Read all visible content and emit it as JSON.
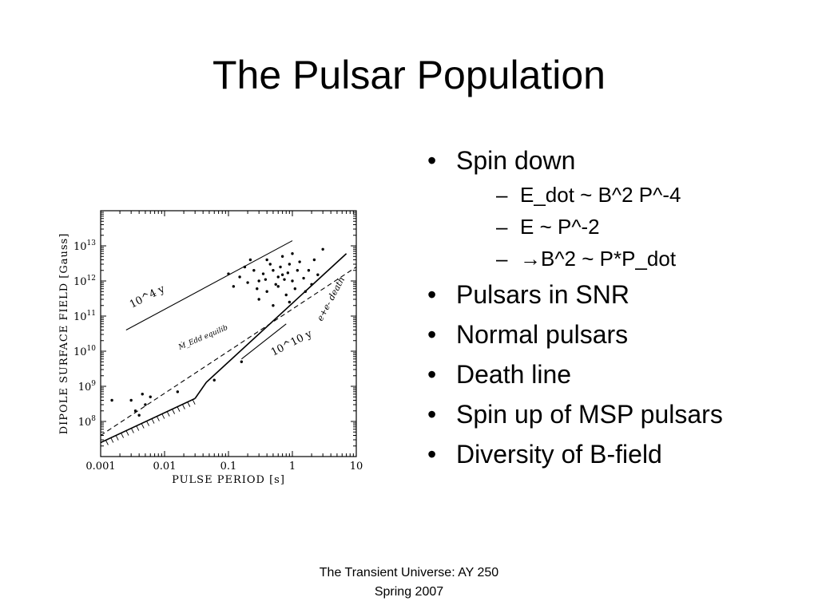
{
  "slide": {
    "title": "The Pulsar Population",
    "footer_line1": "The Transient Universe:  AY 250",
    "footer_line2": "Spring 2007"
  },
  "bullets": [
    {
      "text": "Spin down",
      "sub": [
        "E_dot ~ B^2 P^-4",
        "E ~ P^-2",
        "B^2 ~ P*P_dot"
      ]
    },
    {
      "text": "Pulsars in SNR",
      "sub": []
    },
    {
      "text": "Normal pulsars",
      "sub": []
    },
    {
      "text": "Death line",
      "sub": []
    },
    {
      "text": "Spin up of MSP pulsars",
      "sub": []
    },
    {
      "text": "Diversity of B-field",
      "sub": []
    }
  ],
  "markers": {
    "bullet": "•",
    "dash": "–",
    "arrow": "→"
  },
  "chart_data": {
    "type": "scatter",
    "xlabel": "PULSE PERIOD [s]",
    "ylabel": "DIPOLE SURFACE FIELD [Gauss]",
    "xscale": "log",
    "yscale": "log",
    "xlim": [
      0.001,
      10
    ],
    "ylim": [
      10000000.0,
      100000000000000.0
    ],
    "x_ticks": [
      "0.001",
      "0.01",
      "0.1",
      "1",
      "10"
    ],
    "y_ticks": [
      "10^8",
      "10^9",
      "10^10",
      "10^11",
      "10^12",
      "10^13"
    ],
    "annotations": [
      "10^4 y",
      "10^10 y",
      "Ṁ_Edd equilib",
      "e+e- death"
    ],
    "series": [
      {
        "values": [
          [
            0.5,
            2000000000000.0
          ],
          [
            0.7,
            1500000000000.0
          ],
          [
            0.3,
            1000000000000.0
          ],
          [
            1.0,
            1000000000000.0
          ],
          [
            0.9,
            3000000000000.0
          ],
          [
            0.4,
            500000000000.0
          ],
          [
            0.6,
            700000000000.0
          ],
          [
            1.2,
            2000000000000.0
          ],
          [
            0.25,
            2000000000000.0
          ],
          [
            0.8,
            400000000000.0
          ],
          [
            1.5,
            1200000000000.0
          ],
          [
            0.45,
            3000000000000.0
          ],
          [
            0.35,
            1600000000000.0
          ],
          [
            0.55,
            800000000000.0
          ],
          [
            0.65,
            2500000000000.0
          ],
          [
            0.2,
            900000000000.0
          ],
          [
            1.8,
            2000000000000.0
          ],
          [
            0.15,
            1300000000000.0
          ],
          [
            0.75,
            1100000000000.0
          ],
          [
            1.1,
            600000000000.0
          ],
          [
            0.3,
            300000000000.0
          ],
          [
            2.0,
            800000000000.0
          ],
          [
            0.5,
            200000000000.0
          ],
          [
            0.9,
            250000000000.0
          ],
          [
            0.4,
            4000000000000.0
          ],
          [
            0.28,
            600000000000.0
          ],
          [
            0.12,
            700000000000.0
          ],
          [
            1.3,
            3500000000000.0
          ],
          [
            0.6,
            1300000000000.0
          ],
          [
            0.85,
            1700000000000.0
          ],
          [
            0.38,
            1100000000000.0
          ],
          [
            1.6,
            500000000000.0
          ],
          [
            0.22,
            4000000000000.0
          ],
          [
            0.7,
            5000000000000.0
          ],
          [
            2.5,
            1500000000000.0
          ],
          [
            0.18,
            2500000000000.0
          ],
          [
            3.0,
            8000000000000.0
          ],
          [
            2.2,
            4000000000000.0
          ],
          [
            0.1,
            1600000000000.0
          ],
          [
            1.0,
            6000000000000.0
          ],
          [
            0.003,
            400000000.0
          ],
          [
            0.005,
            300000000.0
          ],
          [
            0.0035,
            200000000.0
          ],
          [
            0.006,
            500000000.0
          ],
          [
            0.004,
            150000000.0
          ],
          [
            0.0045,
            600000000.0
          ],
          [
            0.016,
            700000000.0
          ],
          [
            0.16,
            5000000000.0
          ],
          [
            0.06,
            1500000000.0
          ],
          [
            0.0015,
            400000000.0
          ]
        ]
      }
    ]
  }
}
